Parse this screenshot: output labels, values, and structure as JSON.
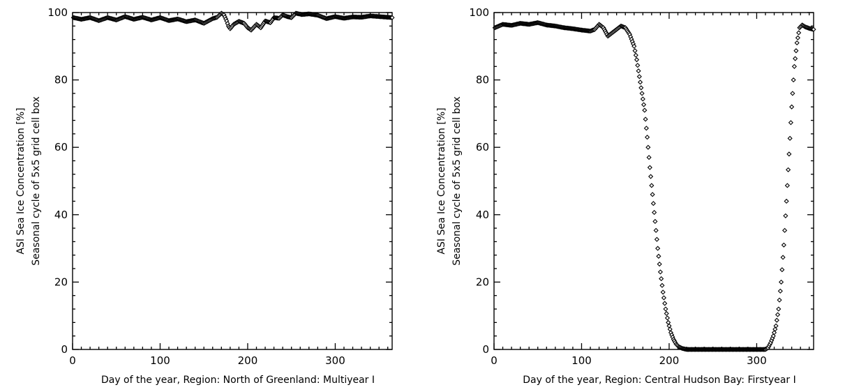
{
  "chart_data": [
    {
      "type": "scatter",
      "title": "",
      "xlabel": "Day of the year, Region: North of Greenland: Multiyear I",
      "ylabel_lines": [
        "ASI Sea Ice Concentration [%]",
        "Seasonal cycle of 5x5 grid cell box"
      ],
      "xlim": [
        0,
        365
      ],
      "ylim": [
        0,
        100
      ],
      "x_ticks": [
        0,
        100,
        200,
        300
      ],
      "y_ticks": [
        0,
        20,
        40,
        60,
        80,
        100
      ],
      "x_tick_labels": [
        "0",
        "100",
        "200",
        "300"
      ],
      "y_tick_labels": [
        "0",
        "20",
        "40",
        "60",
        "80",
        "100"
      ],
      "grid": false,
      "marker": "diamond",
      "anchors": [
        [
          1,
          98.5
        ],
        [
          10,
          98
        ],
        [
          20,
          98.5
        ],
        [
          30,
          97.6
        ],
        [
          40,
          98.5
        ],
        [
          50,
          97.8
        ],
        [
          60,
          98.8
        ],
        [
          70,
          98
        ],
        [
          80,
          98.6
        ],
        [
          90,
          97.8
        ],
        [
          100,
          98.5
        ],
        [
          110,
          97.6
        ],
        [
          120,
          98.1
        ],
        [
          130,
          97.3
        ],
        [
          140,
          97.8
        ],
        [
          150,
          96.8
        ],
        [
          160,
          98.2
        ],
        [
          165,
          98.6
        ],
        [
          170,
          99.8
        ],
        [
          173,
          99.3
        ],
        [
          176,
          97.5
        ],
        [
          178,
          96
        ],
        [
          180,
          95.2
        ],
        [
          184,
          96.5
        ],
        [
          190,
          97.4
        ],
        [
          196,
          96.8
        ],
        [
          200,
          95.5
        ],
        [
          204,
          94.8
        ],
        [
          210,
          96.5
        ],
        [
          215,
          95.5
        ],
        [
          220,
          97.5
        ],
        [
          226,
          97
        ],
        [
          230,
          98.5
        ],
        [
          236,
          98.3
        ],
        [
          240,
          99.3
        ],
        [
          245,
          98.8
        ],
        [
          250,
          98.5
        ],
        [
          255,
          99.8
        ],
        [
          262,
          99.4
        ],
        [
          270,
          99.6
        ],
        [
          280,
          99.2
        ],
        [
          290,
          98.2
        ],
        [
          300,
          98.8
        ],
        [
          310,
          98.3
        ],
        [
          320,
          98.7
        ],
        [
          330,
          98.6
        ],
        [
          340,
          99
        ],
        [
          350,
          98.8
        ],
        [
          365,
          98.5
        ]
      ]
    },
    {
      "type": "scatter",
      "title": "",
      "xlabel": "Day of the year, Region: Central Hudson Bay: Firstyear I",
      "ylabel_lines": [
        "ASI Sea Ice Concentration [%]",
        "Seasonal cycle of 5x5 grid cell box"
      ],
      "xlim": [
        0,
        365
      ],
      "ylim": [
        0,
        100
      ],
      "x_ticks": [
        0,
        100,
        200,
        300
      ],
      "y_ticks": [
        0,
        20,
        40,
        60,
        80,
        100
      ],
      "x_tick_labels": [
        "0",
        "100",
        "200",
        "300"
      ],
      "y_tick_labels": [
        "0",
        "20",
        "40",
        "60",
        "80",
        "100"
      ],
      "grid": false,
      "marker": "diamond",
      "anchors": [
        [
          1,
          95.5
        ],
        [
          10,
          96.5
        ],
        [
          20,
          96.2
        ],
        [
          30,
          96.8
        ],
        [
          40,
          96.5
        ],
        [
          50,
          97
        ],
        [
          60,
          96.3
        ],
        [
          70,
          96
        ],
        [
          80,
          95.5
        ],
        [
          90,
          95.2
        ],
        [
          100,
          94.8
        ],
        [
          110,
          94.5
        ],
        [
          115,
          95
        ],
        [
          120,
          96.5
        ],
        [
          125,
          95.5
        ],
        [
          130,
          93
        ],
        [
          135,
          94
        ],
        [
          140,
          95
        ],
        [
          145,
          96
        ],
        [
          150,
          95.5
        ],
        [
          155,
          93.5
        ],
        [
          160,
          90
        ],
        [
          163,
          86
        ],
        [
          166,
          81
        ],
        [
          169,
          76
        ],
        [
          172,
          71
        ],
        [
          175,
          63
        ],
        [
          178,
          54
        ],
        [
          181,
          46
        ],
        [
          184,
          38
        ],
        [
          187,
          30
        ],
        [
          190,
          23
        ],
        [
          193,
          17
        ],
        [
          196,
          12
        ],
        [
          199,
          8
        ],
        [
          202,
          5
        ],
        [
          205,
          3
        ],
        [
          208,
          1.6
        ],
        [
          211,
          0.8
        ],
        [
          215,
          0.3
        ],
        [
          220,
          0
        ],
        [
          240,
          0
        ],
        [
          260,
          0
        ],
        [
          280,
          0
        ],
        [
          300,
          0
        ],
        [
          310,
          0
        ],
        [
          313,
          0.5
        ],
        [
          316,
          2
        ],
        [
          319,
          4
        ],
        [
          322,
          7
        ],
        [
          325,
          12
        ],
        [
          328,
          20
        ],
        [
          331,
          31
        ],
        [
          334,
          44
        ],
        [
          337,
          58
        ],
        [
          340,
          72
        ],
        [
          343,
          84
        ],
        [
          346,
          91
        ],
        [
          349,
          95.5
        ],
        [
          352,
          96.3
        ],
        [
          355,
          95.8
        ],
        [
          360,
          95.3
        ],
        [
          365,
          95
        ]
      ]
    }
  ]
}
